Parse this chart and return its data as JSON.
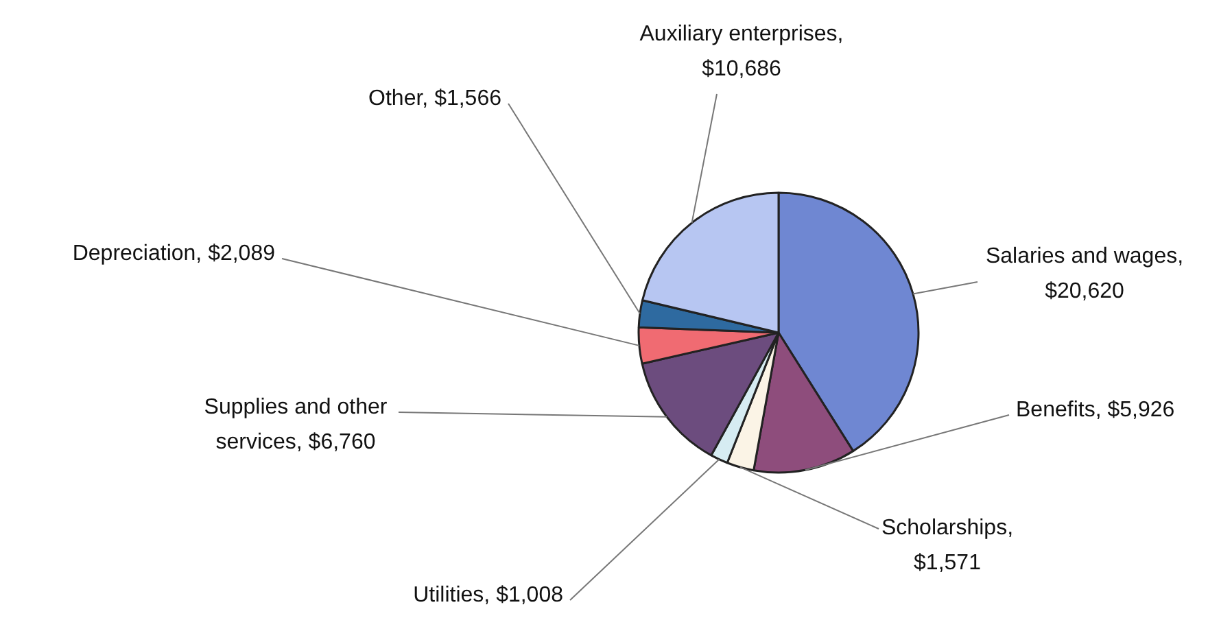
{
  "chart_data": {
    "type": "pie",
    "categories": [
      "Salaries and wages, $20,620",
      "Benefits, $5,926",
      "Scholarships, $1,571",
      "Utilities, $1,008",
      "Supplies and other services, $6,760",
      "Depreciation, $2,089",
      "Other, $1,566",
      "Auxiliary enterprises, $10,686"
    ],
    "values": [
      20620,
      5926,
      1571,
      1008,
      6760,
      2089,
      1566,
      10686
    ],
    "colors": [
      "#6f87d2",
      "#8e4d7c",
      "#fbf4e6",
      "#d6ecf2",
      "#6c4c7e",
      "#f06b72",
      "#2e6aa0",
      "#b7c6f2"
    ]
  }
}
